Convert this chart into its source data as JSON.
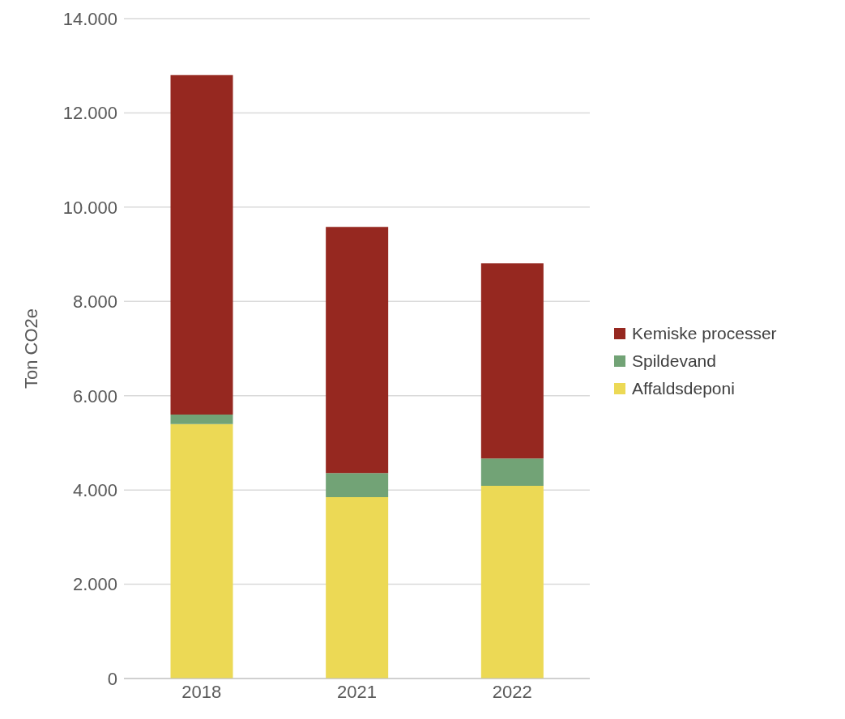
{
  "chart_data": {
    "type": "bar",
    "stacked": true,
    "ylabel": "Ton CO2e",
    "categories": [
      "2018",
      "2021",
      "2022"
    ],
    "series": [
      {
        "name": "Affaldsdeponi",
        "color": "#ecd955",
        "values": [
          5400,
          3850,
          4090
        ]
      },
      {
        "name": "Spildevand",
        "color": "#72a376",
        "values": [
          200,
          510,
          580
        ]
      },
      {
        "name": "Kemiske processer",
        "color": "#962820",
        "values": [
          7200,
          5220,
          4140
        ]
      }
    ],
    "ylim": [
      0,
      14000
    ],
    "yticks": [
      0,
      {
        "value": 2000,
        "label": "2.000"
      },
      {
        "value": 4000,
        "label": "4.000"
      },
      {
        "value": 6000,
        "label": "6.000"
      },
      {
        "value": 8000,
        "label": "8.000"
      },
      {
        "value": 10000,
        "label": "10.000"
      },
      {
        "value": 12000,
        "label": "12.000"
      },
      {
        "value": 14000,
        "label": "14.000"
      }
    ],
    "grid": "y",
    "legend": "right"
  }
}
